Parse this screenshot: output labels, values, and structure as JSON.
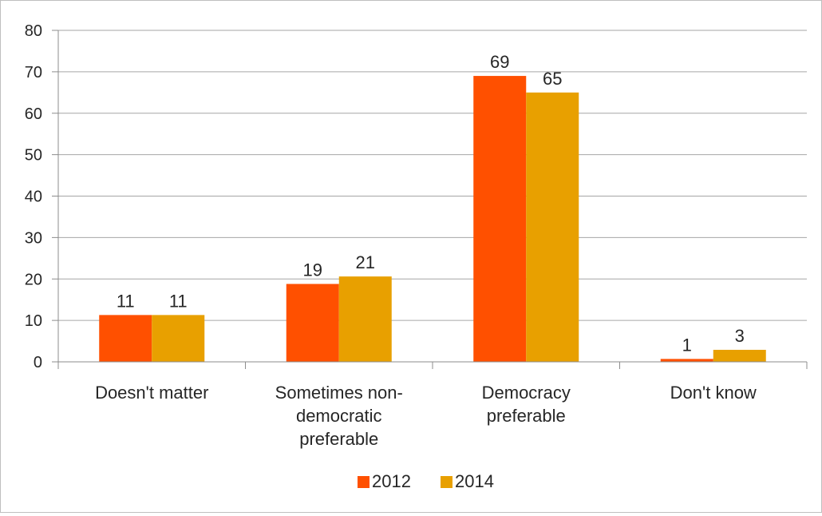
{
  "chart_data": {
    "type": "bar",
    "title": "",
    "xlabel": "",
    "ylabel": "",
    "ylim": [
      0,
      80
    ],
    "yticks": [
      0,
      10,
      20,
      30,
      40,
      50,
      60,
      70,
      80
    ],
    "grid": true,
    "legend_position": "bottom",
    "categories": [
      [
        "Doesn't matter"
      ],
      [
        "Sometimes non-",
        "democratic",
        "preferable"
      ],
      [
        "Democracy",
        "preferable"
      ],
      [
        "Don't know"
      ]
    ],
    "series": [
      {
        "name": "2012",
        "color": "#FF5000",
        "values": [
          11.3,
          18.8,
          69.0,
          0.7
        ],
        "labels": [
          "11",
          "19",
          "69",
          "1"
        ]
      },
      {
        "name": "2014",
        "color": "#E8A000",
        "values": [
          11.3,
          20.6,
          65.0,
          2.9
        ],
        "labels": [
          "11",
          "21",
          "65",
          "3"
        ]
      }
    ]
  }
}
